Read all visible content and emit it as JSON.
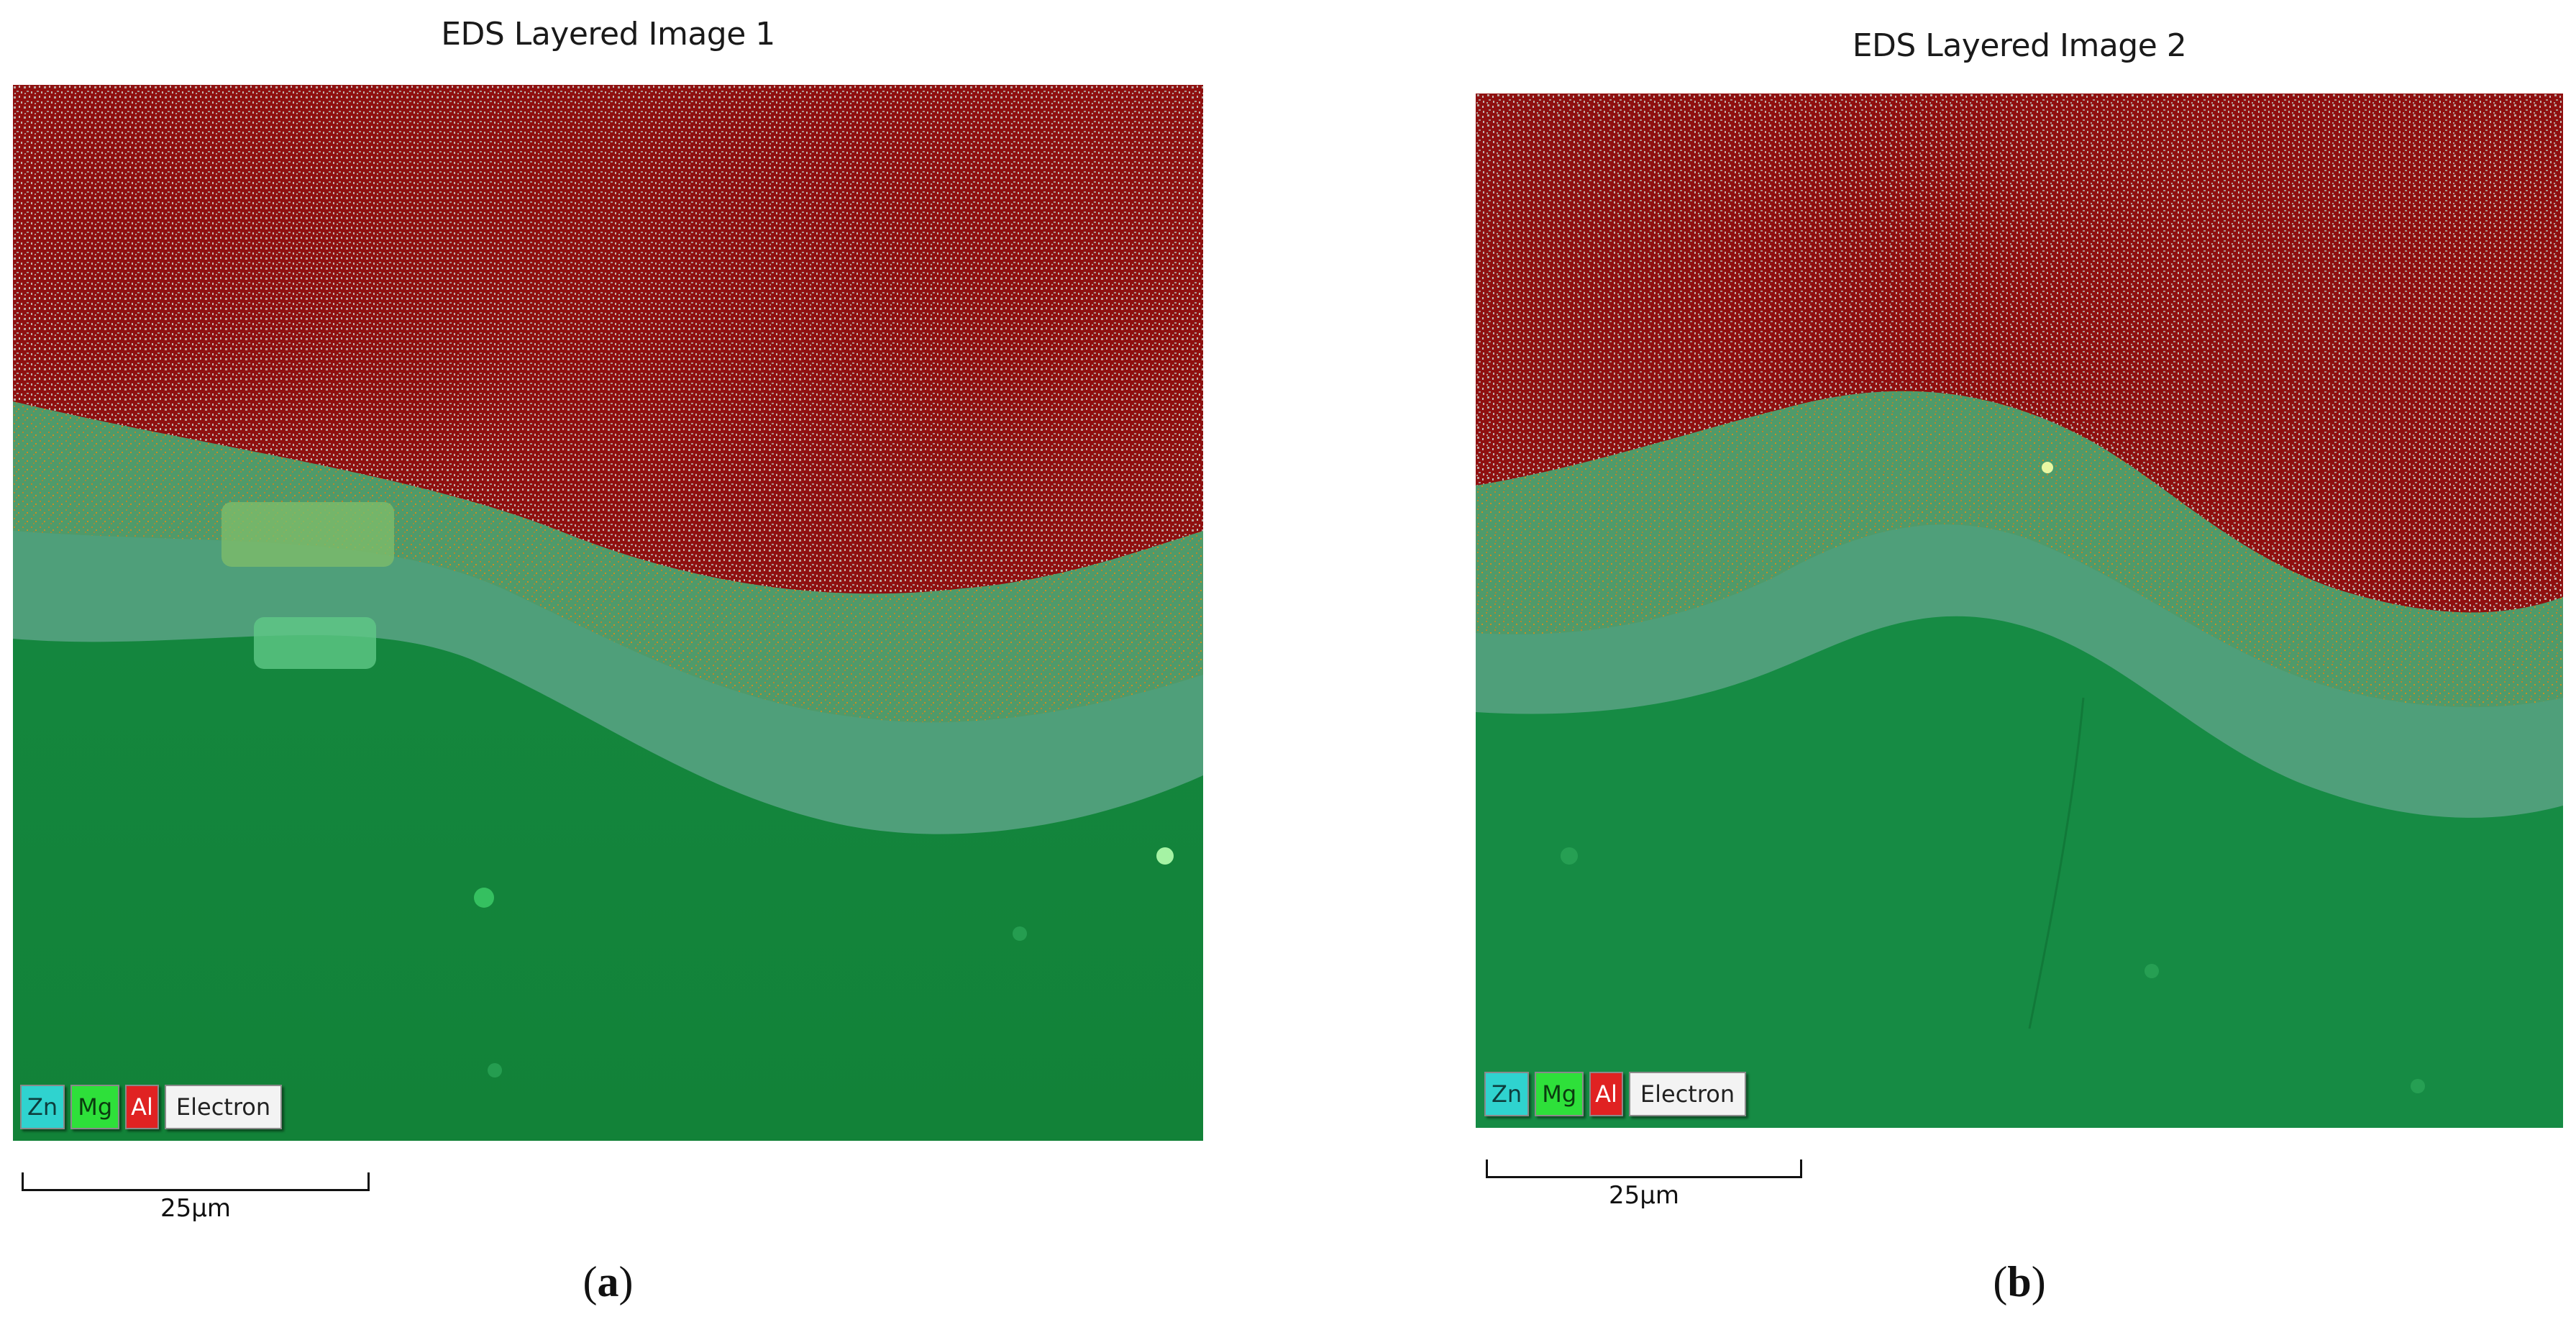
{
  "figure": {
    "panels": [
      {
        "title": "EDS Layered Image 1",
        "legend": [
          "Zn",
          "Mg",
          "Al",
          "Electron"
        ],
        "scale_label": "25µm",
        "caption_letter": "a"
      },
      {
        "title": "EDS Layered Image 2",
        "legend": [
          "Zn",
          "Mg",
          "Al",
          "Electron"
        ],
        "scale_label": "25µm",
        "caption_letter": "b"
      }
    ],
    "colors": {
      "Zn": "#2fd3cf",
      "Mg": "#2ee03a",
      "Al": "#e02222",
      "aluminium_region": "#8f1010",
      "interface_layer": "#4f9a6a",
      "magnesium_region": "#13893d"
    }
  }
}
